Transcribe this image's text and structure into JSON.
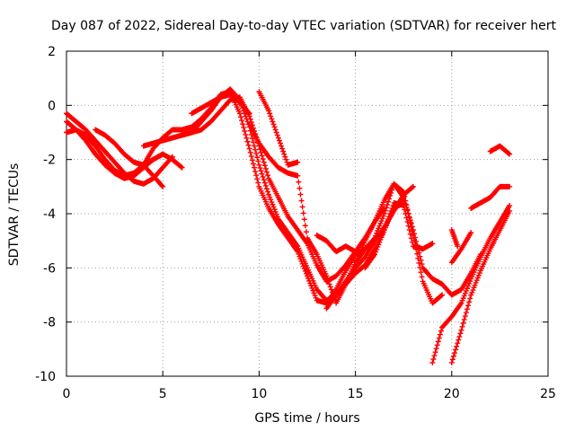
{
  "chart_data": {
    "type": "scatter",
    "title": "Day 087 of 2022, Sidereal Day-to-day VTEC variation (SDTVAR) for receiver hert",
    "xlabel": "GPS time / hours",
    "ylabel": "SDTVAR / TECUs",
    "xlim": [
      0,
      25
    ],
    "ylim": [
      -10,
      2
    ],
    "xticks": [
      "0",
      "5",
      "10",
      "15",
      "20",
      "25"
    ],
    "yticks": [
      "2",
      "0",
      "-2",
      "-4",
      "-6",
      "-8",
      "-10"
    ],
    "grid": true,
    "marker": "+",
    "marker_color": "#ff0000",
    "series": [
      {
        "x": [
          0.0,
          0.5,
          1.0,
          1.5,
          2.0,
          2.5,
          3.0,
          3.5,
          4.0,
          4.5,
          5.0
        ],
        "y": [
          -0.6,
          -0.9,
          -1.3,
          -1.8,
          -2.2,
          -2.5,
          -2.7,
          -2.6,
          -2.3,
          -2.0,
          -1.8
        ]
      },
      {
        "x": [
          0.0,
          0.5,
          1.0,
          1.5,
          2.0,
          2.5,
          3.0,
          3.5,
          4.0,
          4.5,
          5.0,
          5.5
        ],
        "y": [
          -0.3,
          -0.6,
          -0.9,
          -1.3,
          -1.7,
          -2.1,
          -2.5,
          -2.8,
          -2.9,
          -2.7,
          -2.3,
          -1.9
        ]
      },
      {
        "x": [
          0.0,
          0.5,
          1.0,
          1.5,
          2.0,
          2.5,
          3.0,
          3.5,
          4.0,
          4.5,
          5.0
        ],
        "y": [
          -1.0,
          -0.9,
          -1.1,
          -1.5,
          -2.0,
          -2.4,
          -2.6,
          -2.5,
          -2.2,
          -2.6,
          -3.0
        ]
      },
      {
        "x": [
          1.5,
          2.0,
          2.5,
          3.0,
          3.5,
          4.0,
          4.5,
          5.0,
          5.5,
          6.0
        ],
        "y": [
          -0.9,
          -1.1,
          -1.4,
          -1.8,
          -2.1,
          -2.2,
          -2.0,
          -1.8,
          -2.0,
          -2.3
        ]
      },
      {
        "x": [
          3.5,
          4.0,
          4.5,
          5.0,
          5.5,
          6.0,
          6.5,
          7.0,
          7.5,
          8.0,
          8.5,
          9.0,
          9.5,
          10.0,
          10.5,
          11.0,
          11.5,
          12.0,
          12.5,
          13.0,
          13.5,
          14.0,
          14.5,
          15.0,
          15.5,
          16.0,
          16.5,
          17.0,
          17.5,
          18.0
        ],
        "y": [
          -2.6,
          -2.2,
          -1.6,
          -1.2,
          -0.9,
          -0.9,
          -0.8,
          -0.5,
          -0.1,
          0.4,
          0.5,
          -0.3,
          -1.6,
          -3.0,
          -3.8,
          -4.4,
          -4.9,
          -5.4,
          -6.3,
          -7.2,
          -7.3,
          -6.8,
          -6.1,
          -5.5,
          -5.3,
          -5.0,
          -4.5,
          -3.9,
          -3.3,
          -3.0
        ]
      },
      {
        "x": [
          4.0,
          4.5,
          5.0,
          5.5,
          6.0,
          6.5,
          7.0,
          7.5,
          8.0,
          8.5,
          9.0,
          9.5,
          10.0,
          10.5,
          11.0,
          11.5,
          12.0,
          12.5,
          13.0,
          13.5,
          14.0,
          14.5,
          15.0
        ],
        "y": [
          -1.5,
          -1.4,
          -1.3,
          -1.2,
          -1.1,
          -1.0,
          -0.9,
          -0.6,
          -0.2,
          0.2,
          0.3,
          -0.4,
          -1.5,
          -2.7,
          -3.4,
          -4.1,
          -4.6,
          -5.1,
          -5.9,
          -6.5,
          -6.3,
          -5.9,
          -5.4
        ]
      },
      {
        "x": [
          6.0,
          6.5,
          7.0,
          7.5,
          8.0,
          8.5,
          9.0,
          9.5,
          10.0,
          10.5,
          11.0,
          11.5,
          12.0,
          12.5,
          13.0,
          13.5,
          14.0,
          14.5,
          15.0,
          15.5,
          16.0
        ],
        "y": [
          -1.1,
          -1.0,
          -0.6,
          -0.2,
          0.3,
          0.6,
          0.2,
          -0.8,
          -2.2,
          -3.3,
          -4.2,
          -4.7,
          -5.2,
          -6.0,
          -6.8,
          -7.2,
          -7.0,
          -6.5,
          -6.0,
          -5.6,
          -5.0
        ]
      },
      {
        "x": [
          6.5,
          7.0,
          7.5,
          8.0,
          8.5,
          9.0,
          9.5
        ],
        "y": [
          -0.3,
          -0.1,
          0.1,
          0.3,
          0.4,
          0.1,
          -0.3
        ]
      },
      {
        "x": [
          9.5,
          10.0,
          10.5,
          11.0,
          11.5,
          12.0,
          12.5,
          13.0,
          13.5,
          14.0,
          14.5,
          15.0,
          15.5,
          16.0,
          16.5
        ],
        "y": [
          -0.7,
          -1.4,
          -1.9,
          -2.3,
          -2.5,
          -2.6,
          -4.9,
          -5.5,
          -6.3,
          -7.3,
          -6.6,
          -5.8,
          -5.0,
          -4.3,
          -3.8
        ]
      },
      {
        "x": [
          10.0,
          10.5,
          11.0,
          11.5,
          12.0
        ],
        "y": [
          0.5,
          -0.2,
          -1.2,
          -2.2,
          -2.1
        ]
      },
      {
        "x": [
          13.0,
          13.5,
          14.0,
          14.5,
          15.0,
          15.5,
          16.0,
          16.5,
          17.0,
          17.5,
          18.0,
          18.5,
          19.0,
          19.5
        ],
        "y": [
          -4.8,
          -5.0,
          -5.4,
          -5.2,
          -5.4,
          -4.9,
          -4.3,
          -3.5,
          -2.9,
          -3.2,
          -4.8,
          -6.5,
          -7.3,
          -7.0
        ]
      },
      {
        "x": [
          15.0,
          15.5,
          16.0,
          16.5,
          17.0,
          17.5,
          18.0,
          18.5,
          19.0,
          19.5,
          20.0,
          20.5,
          21.0,
          21.5
        ],
        "y": [
          -5.8,
          -5.3,
          -4.9,
          -4.0,
          -2.9,
          -3.4,
          -4.6,
          -6.0,
          -6.4,
          -6.6,
          -7.0,
          -6.8,
          -6.2,
          -5.5
        ]
      },
      {
        "x": [
          15.5,
          16.0,
          16.5,
          17.0,
          17.5,
          18.0,
          18.5,
          19.0
        ],
        "y": [
          -6.0,
          -5.5,
          -4.6,
          -3.6,
          -3.7,
          -5.2,
          -5.3,
          -5.1
        ]
      },
      {
        "x": [
          19.0,
          19.5,
          20.0,
          20.5,
          21.0,
          21.5,
          22.0,
          22.5,
          23.0
        ],
        "y": [
          -9.5,
          -8.2,
          -7.8,
          -7.3,
          -6.4,
          -5.6,
          -4.9,
          -4.3,
          -3.7
        ]
      },
      {
        "x": [
          20.0,
          20.5,
          21.0,
          21.5,
          22.0,
          22.5,
          23.0
        ],
        "y": [
          -9.5,
          -8.3,
          -7.0,
          -6.1,
          -5.3,
          -4.6,
          -3.9
        ]
      },
      {
        "x": [
          20.0,
          20.5,
          21.0
        ],
        "y": [
          -5.8,
          -5.3,
          -4.7
        ]
      },
      {
        "x": [
          20.0,
          20.3
        ],
        "y": [
          -4.6,
          -5.2
        ]
      },
      {
        "x": [
          21.0,
          21.5,
          22.0,
          22.5,
          23.0
        ],
        "y": [
          -3.8,
          -3.6,
          -3.4,
          -3.0,
          -3.0
        ]
      },
      {
        "x": [
          22.0,
          22.5,
          23.0
        ],
        "y": [
          -1.7,
          -1.5,
          -1.8
        ]
      },
      {
        "x": [
          13.5,
          14.0,
          14.5,
          15.0,
          15.5,
          16.0,
          16.5,
          17.0,
          17.5
        ],
        "y": [
          -7.5,
          -7.0,
          -6.6,
          -6.2,
          -5.9,
          -5.3,
          -4.6,
          -3.8,
          -3.6
        ]
      }
    ]
  }
}
